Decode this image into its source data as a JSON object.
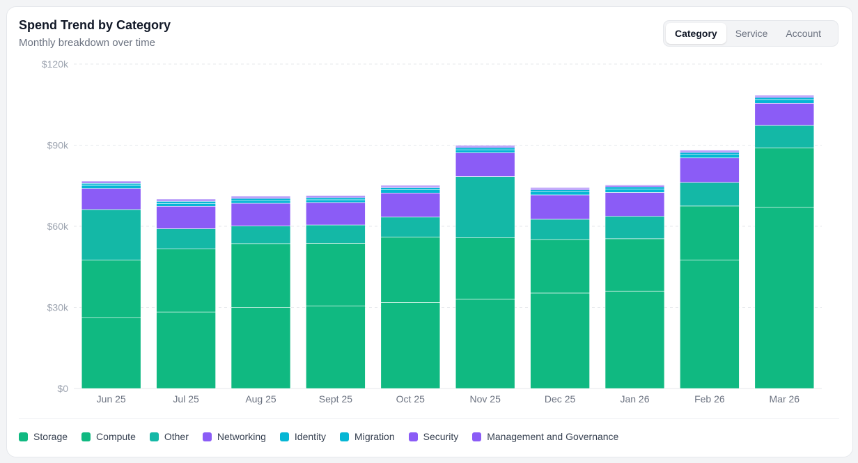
{
  "header": {
    "title": "Spend Trend by Category",
    "subtitle": "Monthly breakdown over time"
  },
  "tabs": [
    {
      "label": "Category",
      "active": true
    },
    {
      "label": "Service",
      "active": false
    },
    {
      "label": "Account",
      "active": false
    }
  ],
  "chart_data": {
    "type": "bar",
    "stacked": true,
    "categories": [
      "Jun 25",
      "Jul 25",
      "Aug 25",
      "Sept 25",
      "Oct 25",
      "Nov 25",
      "Dec 25",
      "Jan 26",
      "Feb 26",
      "Mar 26"
    ],
    "y_ticks": [
      "$0",
      "$30k",
      "$60k",
      "$90k",
      "$120k"
    ],
    "ylim": [
      0,
      120000
    ],
    "grid": true,
    "legend_position": "bottom",
    "series": [
      {
        "name": "Storage",
        "color": "#10b981",
        "values": [
          26200,
          28300,
          30000,
          30500,
          31800,
          33000,
          35300,
          36000,
          47500,
          67000
        ]
      },
      {
        "name": "Compute",
        "color": "#10b981",
        "values": [
          21300,
          23300,
          23600,
          23200,
          24200,
          22800,
          19800,
          19400,
          20000,
          22000
        ]
      },
      {
        "name": "Other",
        "color": "#14b8a6",
        "values": [
          18700,
          7500,
          6500,
          6800,
          7400,
          22600,
          7500,
          8300,
          8700,
          8300
        ]
      },
      {
        "name": "Networking",
        "color": "#8b5cf6",
        "values": [
          7800,
          8300,
          8400,
          8300,
          8900,
          8800,
          9000,
          8800,
          9100,
          8200
        ]
      },
      {
        "name": "Identity",
        "color": "#06b6d4",
        "values": [
          1200,
          1000,
          1000,
          1000,
          1200,
          1100,
          1200,
          1200,
          1300,
          1400
        ]
      },
      {
        "name": "Migration",
        "color": "#06b6d4",
        "values": [
          700,
          800,
          800,
          800,
          800,
          800,
          700,
          800,
          700,
          700
        ]
      },
      {
        "name": "Security",
        "color": "#8b5cf6",
        "values": [
          500,
          500,
          500,
          500,
          500,
          500,
          500,
          500,
          500,
          500
        ]
      },
      {
        "name": "Management and Governance",
        "color": "#8b5cf6",
        "values": [
          300,
          300,
          300,
          300,
          300,
          300,
          300,
          300,
          300,
          300
        ]
      }
    ]
  }
}
